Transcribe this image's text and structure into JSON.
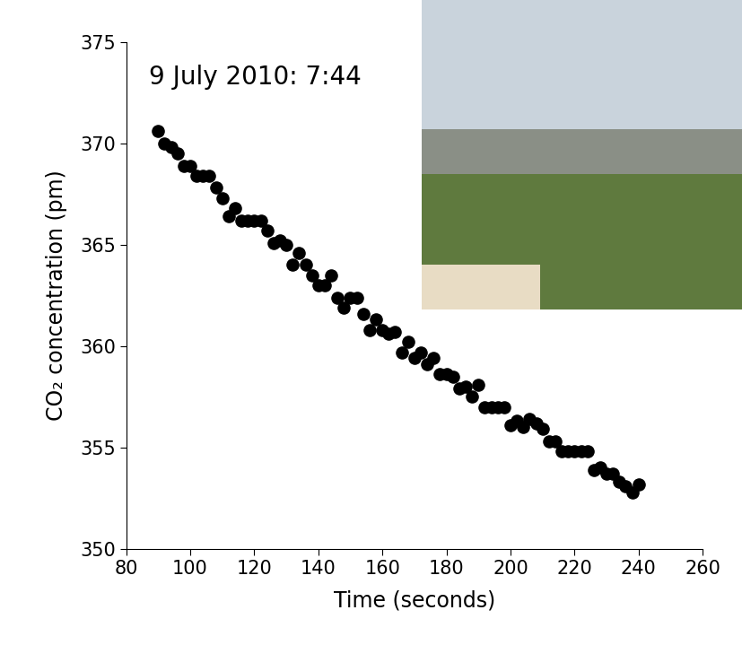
{
  "chart_data": {
    "type": "scatter",
    "annotation": "9 July 2010: 7:44",
    "x_label": "Time (seconds)",
    "y_label": "CO₂ concentration (pm)",
    "x": [
      90,
      92,
      94,
      96,
      98,
      100,
      102,
      104,
      106,
      108,
      110,
      112,
      114,
      116,
      118,
      120,
      122,
      124,
      126,
      128,
      130,
      132,
      134,
      136,
      138,
      140,
      142,
      144,
      146,
      148,
      150,
      152,
      154,
      156,
      158,
      160,
      162,
      164,
      166,
      168,
      170,
      172,
      174,
      176,
      178,
      180,
      182,
      184,
      186,
      188,
      190,
      192,
      194,
      196,
      198,
      200,
      202,
      204,
      206,
      208,
      210,
      212,
      214,
      216,
      218,
      220,
      222,
      224,
      226,
      228,
      230,
      232,
      234,
      236,
      238,
      240
    ],
    "values": [
      370.6,
      370.0,
      369.8,
      369.5,
      368.9,
      368.9,
      368.4,
      368.4,
      368.4,
      367.8,
      367.3,
      366.4,
      366.8,
      366.2,
      366.2,
      366.2,
      366.2,
      365.7,
      365.1,
      365.2,
      365.0,
      364.0,
      364.6,
      364.0,
      363.5,
      363.0,
      363.0,
      363.5,
      362.4,
      361.9,
      362.4,
      362.4,
      361.6,
      360.8,
      361.3,
      360.8,
      360.6,
      360.7,
      359.7,
      360.2,
      359.4,
      359.7,
      359.1,
      359.4,
      358.6,
      358.6,
      358.5,
      357.9,
      358.0,
      357.5,
      358.1,
      357.0,
      357.0,
      357.0,
      357.0,
      356.1,
      356.3,
      356.0,
      356.4,
      356.2,
      355.9,
      355.3,
      355.3,
      354.8,
      354.8,
      354.8,
      354.8,
      354.8,
      353.9,
      354.0,
      353.7,
      353.7,
      353.3,
      353.1,
      352.8,
      353.2
    ],
    "color": "#000000",
    "marker": "circle",
    "xlim": [
      80,
      260
    ],
    "xticks": [
      80,
      100,
      120,
      140,
      160,
      180,
      200,
      220,
      240,
      260
    ],
    "ylim": [
      350,
      375
    ],
    "yticks": [
      350,
      355,
      360,
      365,
      370,
      375
    ],
    "grid": false
  }
}
